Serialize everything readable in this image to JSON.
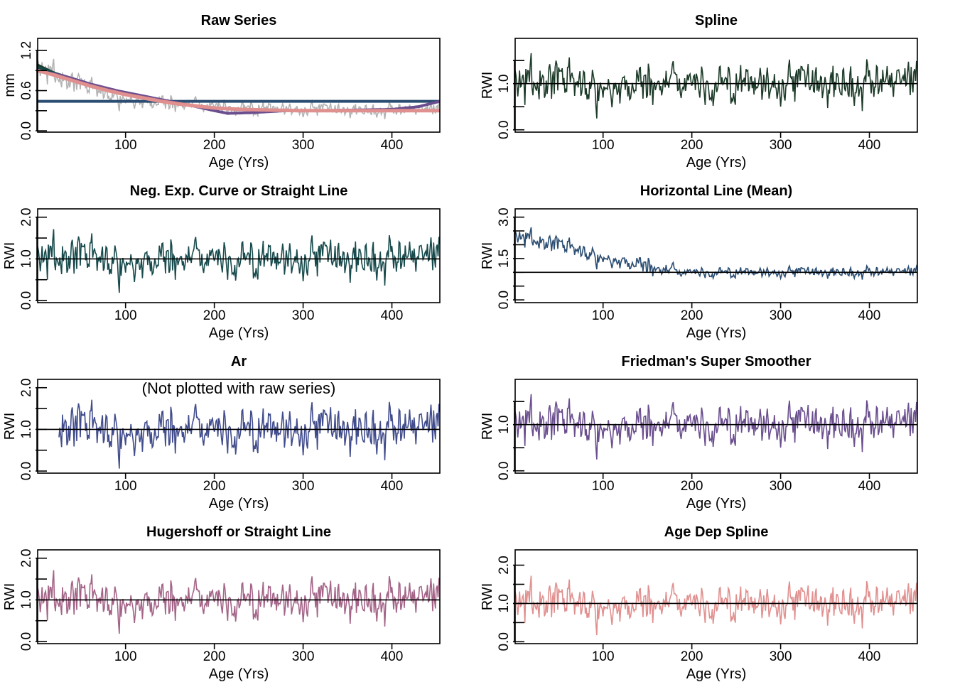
{
  "chart_data": [
    {
      "id": "raw",
      "type": "line",
      "title": "Raw Series",
      "xlabel": "Age (Yrs)",
      "ylabel": "mm",
      "xlim": [
        1,
        454
      ],
      "ylim": [
        -0.02,
        1.38
      ],
      "xticks": [
        100,
        200,
        300,
        400
      ],
      "xtick_labels": [
        "100",
        "200",
        "300",
        "400"
      ],
      "yticks": [
        0.0,
        0.3,
        0.6,
        0.9,
        1.2
      ],
      "ytick_labels": [
        "0.0",
        "",
        "0.6",
        "",
        "1.2"
      ],
      "series_color": "#b3b3b3",
      "series": [
        {
          "color": "#1c3a28",
          "shape": "decay",
          "x": [
            1,
            20,
            40,
            60,
            80,
            100,
            120,
            140,
            160,
            180,
            200,
            230,
            260,
            300,
            350,
            400,
            454
          ],
          "y": [
            0.98,
            0.86,
            0.78,
            0.69,
            0.62,
            0.55,
            0.49,
            0.44,
            0.4,
            0.37,
            0.34,
            0.32,
            0.31,
            0.3,
            0.3,
            0.3,
            0.3
          ]
        },
        {
          "color": "#174a4c",
          "shape": "decay",
          "x": [
            1,
            20,
            40,
            60,
            80,
            100,
            120,
            140,
            160,
            180,
            200,
            230,
            260,
            300,
            350,
            400,
            454
          ],
          "y": [
            0.95,
            0.86,
            0.77,
            0.69,
            0.61,
            0.55,
            0.49,
            0.44,
            0.4,
            0.37,
            0.34,
            0.32,
            0.31,
            0.3,
            0.3,
            0.3,
            0.3
          ]
        },
        {
          "color": "#2b4d72",
          "shape": "flat",
          "x": [
            1,
            454
          ],
          "y": [
            0.44,
            0.44
          ]
        },
        {
          "color": "#6a4e8e",
          "shape": "smooth",
          "x": [
            1,
            30,
            60,
            90,
            120,
            150,
            180,
            200,
            215,
            240,
            280,
            320,
            360,
            400,
            430,
            454
          ],
          "y": [
            0.9,
            0.82,
            0.7,
            0.6,
            0.52,
            0.44,
            0.36,
            0.3,
            0.26,
            0.27,
            0.3,
            0.3,
            0.31,
            0.32,
            0.36,
            0.44
          ]
        },
        {
          "color": "#a46488",
          "shape": "decay",
          "x": [
            1,
            20,
            40,
            60,
            80,
            100,
            120,
            140,
            160,
            180,
            200,
            230,
            260,
            300,
            350,
            400,
            454
          ],
          "y": [
            0.9,
            0.84,
            0.76,
            0.68,
            0.61,
            0.55,
            0.5,
            0.45,
            0.41,
            0.37,
            0.34,
            0.32,
            0.31,
            0.3,
            0.3,
            0.3,
            0.3
          ]
        },
        {
          "color": "#e0908f",
          "shape": "decay",
          "x": [
            1,
            20,
            40,
            60,
            80,
            100,
            120,
            140,
            160,
            180,
            200,
            230,
            260,
            300,
            350,
            400,
            454
          ],
          "y": [
            0.9,
            0.83,
            0.75,
            0.67,
            0.6,
            0.54,
            0.49,
            0.44,
            0.4,
            0.37,
            0.34,
            0.32,
            0.31,
            0.3,
            0.3,
            0.3,
            0.3
          ]
        }
      ]
    },
    {
      "id": "spline",
      "type": "line",
      "title": "Spline",
      "xlabel": "Age (Yrs)",
      "ylabel": "RWI",
      "xlim": [
        1,
        454
      ],
      "ylim": [
        -0.05,
        1.98
      ],
      "xticks": [
        100,
        200,
        300,
        400
      ],
      "xtick_labels": [
        "100",
        "200",
        "300",
        "400"
      ],
      "yticks": [
        0.0,
        0.5,
        1.0,
        1.5
      ],
      "ytick_labels": [
        "0.0",
        "",
        "1.0",
        ""
      ],
      "refline": 1.0,
      "series_color": "#1c3a28",
      "amplitude": 1.0,
      "start": 1
    },
    {
      "id": "negexp",
      "type": "line",
      "title": "Neg. Exp. Curve or Straight Line",
      "xlabel": "Age (Yrs)",
      "ylabel": "RWI",
      "xlim": [
        1,
        454
      ],
      "ylim": [
        -0.05,
        2.2
      ],
      "xticks": [
        100,
        200,
        300,
        400
      ],
      "xtick_labels": [
        "100",
        "200",
        "300",
        "400"
      ],
      "yticks": [
        0.0,
        0.5,
        1.0,
        1.5,
        2.0
      ],
      "ytick_labels": [
        "0.0",
        "",
        "1.0",
        "",
        "2.0"
      ],
      "refline": 1.0,
      "series_color": "#174a4c",
      "amplitude": 1.08,
      "start": 1
    },
    {
      "id": "mean",
      "type": "line",
      "title": "Horizontal Line (Mean)",
      "xlabel": "Age (Yrs)",
      "ylabel": "RWI",
      "xlim": [
        1,
        454
      ],
      "ylim": [
        -0.1,
        3.3
      ],
      "xticks": [
        100,
        200,
        300,
        400
      ],
      "xtick_labels": [
        "100",
        "200",
        "300",
        "400"
      ],
      "yticks": [
        0.0,
        0.5,
        1.0,
        1.5,
        2.0,
        2.5,
        3.0
      ],
      "ytick_labels": [
        "0.0",
        "",
        "",
        "1.5",
        "",
        "",
        "3.0"
      ],
      "refline": 1.0,
      "series_color": "#2b4d72",
      "amplitude": 0.9,
      "trend": "decline",
      "start": 1
    },
    {
      "id": "ar",
      "type": "line",
      "title": "Ar",
      "note": "(Not plotted with raw series)",
      "xlabel": "Age (Yrs)",
      "ylabel": "RWI",
      "xlim": [
        1,
        454
      ],
      "ylim": [
        -0.05,
        2.2
      ],
      "xticks": [
        100,
        200,
        300,
        400
      ],
      "xtick_labels": [
        "100",
        "200",
        "300",
        "400"
      ],
      "yticks": [
        0.0,
        0.5,
        1.0,
        1.5,
        2.0
      ],
      "ytick_labels": [
        "0.0",
        "",
        "1.0",
        "",
        "2.0"
      ],
      "refline": 1.0,
      "series_color": "#414c8c",
      "amplitude": 1.25,
      "start": 25
    },
    {
      "id": "supsmu",
      "type": "line",
      "title": "Friedman's Super Smoother",
      "xlabel": "Age (Yrs)",
      "ylabel": "RWI",
      "xlim": [
        1,
        454
      ],
      "ylim": [
        -0.05,
        1.98
      ],
      "xticks": [
        100,
        200,
        300,
        400
      ],
      "xtick_labels": [
        "100",
        "200",
        "300",
        "400"
      ],
      "yticks": [
        0.0,
        0.5,
        1.0,
        1.5
      ],
      "ytick_labels": [
        "0.0",
        "",
        "1.0",
        ""
      ],
      "refline": 1.0,
      "series_color": "#6a4e8e",
      "amplitude": 1.0,
      "start": 1
    },
    {
      "id": "hugershoff",
      "type": "line",
      "title": "Hugershoff or Straight Line",
      "xlabel": "Age (Yrs)",
      "ylabel": "RWI",
      "xlim": [
        1,
        454
      ],
      "ylim": [
        -0.05,
        2.2
      ],
      "xticks": [
        100,
        200,
        300,
        400
      ],
      "xtick_labels": [
        "100",
        "200",
        "300",
        "400"
      ],
      "yticks": [
        0.0,
        0.5,
        1.0,
        1.5,
        2.0
      ],
      "ytick_labels": [
        "0.0",
        "",
        "1.0",
        "",
        "2.0"
      ],
      "refline": 1.0,
      "series_color": "#a46488",
      "amplitude": 1.08,
      "start": 1
    },
    {
      "id": "agedep",
      "type": "line",
      "title": "Age Dep Spline",
      "xlabel": "Age (Yrs)",
      "ylabel": "RWI",
      "xlim": [
        1,
        454
      ],
      "ylim": [
        -0.05,
        2.4
      ],
      "xticks": [
        100,
        200,
        300,
        400
      ],
      "xtick_labels": [
        "100",
        "200",
        "300",
        "400"
      ],
      "yticks": [
        0.0,
        0.5,
        1.0,
        1.5,
        2.0
      ],
      "ytick_labels": [
        "0.0",
        "",
        "1.0",
        "",
        "2.0"
      ],
      "refline": 1.0,
      "series_color": "#e0908f",
      "amplitude": 1.1,
      "start": 1
    }
  ]
}
